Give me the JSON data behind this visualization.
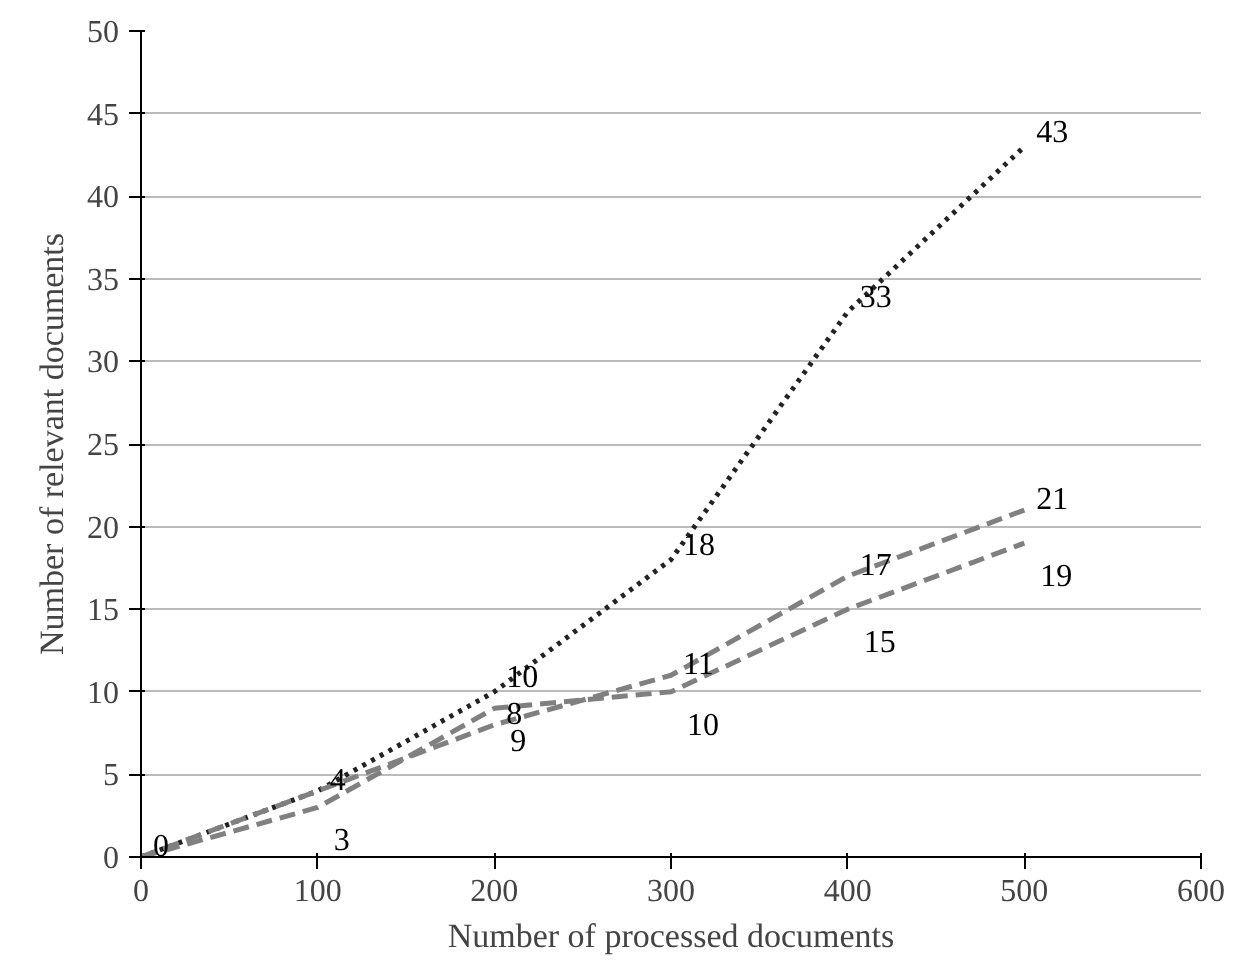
{
  "chart_data": {
    "type": "line",
    "xlabel": "Number of processed documents",
    "ylabel": "Number of relevant documents",
    "x": [
      0,
      100,
      200,
      300,
      400,
      500
    ],
    "series": [
      {
        "color": "#222222",
        "line_style": "dotted",
        "values": [
          0,
          4,
          10,
          18,
          33,
          43
        ],
        "value_labels": [
          null,
          null,
          "10",
          "18",
          "33",
          "43"
        ]
      },
      {
        "color": "#808080",
        "line_style": "dashed",
        "values": [
          0,
          4,
          8,
          11,
          17,
          21
        ],
        "value_labels": [
          "0",
          "4",
          "8",
          "11",
          "17",
          "21"
        ]
      },
      {
        "color": "#808080",
        "line_style": "dashed",
        "values": [
          0,
          3,
          9,
          10,
          15,
          19
        ],
        "value_labels": [
          null,
          "3",
          "9",
          "10",
          "15",
          "19"
        ]
      }
    ],
    "xlim": [
      0,
      600
    ],
    "xticks": [
      0,
      100,
      200,
      300,
      400,
      500,
      600
    ],
    "ylim": [
      0,
      50
    ],
    "yticks": [
      0,
      5,
      10,
      15,
      20,
      25,
      30,
      35,
      40,
      45,
      50
    ],
    "grid": "y",
    "marker": "none"
  }
}
